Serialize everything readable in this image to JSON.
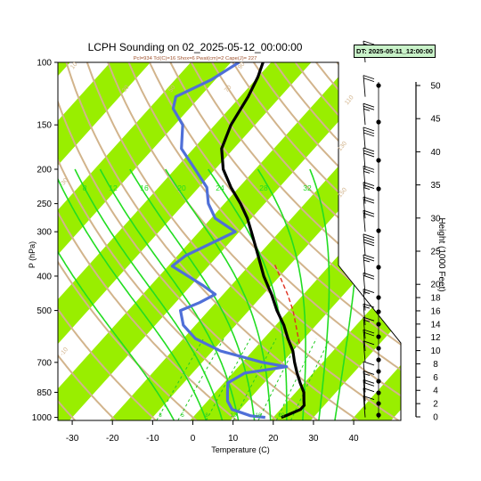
{
  "title": "LCPH Sounding on 02_2025-05-12_00:00:00",
  "subtitle": "Pcl=934 Tcl(C)=16 Shox=6 Pwat(cm)=2 Cape(J)= 227",
  "dt_badge": "DT: 2025-05-11_12:00:00",
  "colors": {
    "temperature": "#000000",
    "dewpoint": "#4f6fd8",
    "parcel": "#e03020",
    "dry_adiabat": "#d2b48c",
    "moist_adiabat": "#22dd22",
    "mixing_ratio": "#22cc22",
    "isotherm_band": "#99ee00"
  },
  "chart_data": {
    "type": "line",
    "xlabel": "Temperature (C)",
    "ylabel": "P (hPa)",
    "right_label": "Height (1000 Feet)",
    "xlim": [
      -33,
      50
    ],
    "ylim": [
      1020,
      100
    ],
    "y_scale": "log",
    "x_ticks": [
      -30,
      -20,
      -10,
      0,
      10,
      20,
      30,
      40
    ],
    "p_ticks": [
      100,
      150,
      200,
      250,
      300,
      400,
      500,
      700,
      850,
      1000
    ],
    "height_ticks": [
      0,
      2,
      4,
      6,
      8,
      10,
      12,
      14,
      16,
      18,
      20,
      25,
      30,
      35,
      40,
      45,
      50
    ],
    "dry_adiabat_labels": [
      "-30",
      "-10",
      "10",
      "30",
      "50",
      "70",
      "90",
      "110",
      "130",
      "150"
    ],
    "moist_adiabat_labels": [
      "8",
      "12",
      "16",
      "20",
      "24",
      "28",
      "32"
    ],
    "mixing_ratio_labels": [
      "3",
      "5",
      "8",
      "12",
      "16",
      "20"
    ],
    "series": [
      {
        "name": "temperature",
        "points": [
          {
            "p": 1000,
            "t": 22
          },
          {
            "p": 985,
            "t": 23
          },
          {
            "p": 950,
            "t": 25
          },
          {
            "p": 925,
            "t": 25
          },
          {
            "p": 900,
            "t": 24
          },
          {
            "p": 850,
            "t": 22
          },
          {
            "p": 800,
            "t": 19
          },
          {
            "p": 750,
            "t": 16
          },
          {
            "p": 700,
            "t": 13
          },
          {
            "p": 650,
            "t": 10
          },
          {
            "p": 600,
            "t": 6
          },
          {
            "p": 550,
            "t": 2
          },
          {
            "p": 500,
            "t": -3
          },
          {
            "p": 450,
            "t": -8
          },
          {
            "p": 400,
            "t": -14
          },
          {
            "p": 350,
            "t": -20
          },
          {
            "p": 300,
            "t": -27
          },
          {
            "p": 275,
            "t": -31
          },
          {
            "p": 250,
            "t": -36
          },
          {
            "p": 225,
            "t": -42
          },
          {
            "p": 200,
            "t": -48
          },
          {
            "p": 175,
            "t": -53
          },
          {
            "p": 150,
            "t": -56
          },
          {
            "p": 125,
            "t": -58
          },
          {
            "p": 110,
            "t": -60
          },
          {
            "p": 100,
            "t": -62
          }
        ]
      },
      {
        "name": "dewpoint",
        "points": [
          {
            "p": 1000,
            "t": 18
          },
          {
            "p": 990,
            "t": 14
          },
          {
            "p": 950,
            "t": 8
          },
          {
            "p": 900,
            "t": 5
          },
          {
            "p": 850,
            "t": 3
          },
          {
            "p": 800,
            "t": 1
          },
          {
            "p": 750,
            "t": 3
          },
          {
            "p": 720,
            "t": 12
          },
          {
            "p": 700,
            "t": 5
          },
          {
            "p": 650,
            "t": -8
          },
          {
            "p": 600,
            "t": -17
          },
          {
            "p": 550,
            "t": -23
          },
          {
            "p": 500,
            "t": -27
          },
          {
            "p": 475,
            "t": -24
          },
          {
            "p": 450,
            "t": -22
          },
          {
            "p": 425,
            "t": -27
          },
          {
            "p": 375,
            "t": -39
          },
          {
            "p": 350,
            "t": -38
          },
          {
            "p": 300,
            "t": -31
          },
          {
            "p": 275,
            "t": -39
          },
          {
            "p": 250,
            "t": -44
          },
          {
            "p": 225,
            "t": -48
          },
          {
            "p": 200,
            "t": -55
          },
          {
            "p": 175,
            "t": -63
          },
          {
            "p": 150,
            "t": -68
          },
          {
            "p": 135,
            "t": -74
          },
          {
            "p": 125,
            "t": -76
          },
          {
            "p": 112,
            "t": -71
          },
          {
            "p": 100,
            "t": -68
          }
        ]
      },
      {
        "name": "parcel",
        "points": [
          {
            "p": 620,
            "t": 10
          },
          {
            "p": 550,
            "t": 5
          },
          {
            "p": 500,
            "t": 1
          },
          {
            "p": 450,
            "t": -4
          },
          {
            "p": 400,
            "t": -10
          },
          {
            "p": 370,
            "t": -14
          }
        ]
      }
    ],
    "wind_barbs": [
      {
        "p": 100,
        "speed": 15,
        "dir": 270
      },
      {
        "p": 125,
        "speed": 20,
        "dir": 270
      },
      {
        "p": 150,
        "speed": 25,
        "dir": 270
      },
      {
        "p": 175,
        "speed": 30,
        "dir": 270
      },
      {
        "p": 200,
        "speed": 30,
        "dir": 270
      },
      {
        "p": 225,
        "speed": 25,
        "dir": 270
      },
      {
        "p": 250,
        "speed": 25,
        "dir": 270
      },
      {
        "p": 275,
        "speed": 20,
        "dir": 270
      },
      {
        "p": 300,
        "speed": 20,
        "dir": 270
      },
      {
        "p": 350,
        "speed": 40,
        "dir": 270
      },
      {
        "p": 400,
        "speed": 25,
        "dir": 270
      },
      {
        "p": 450,
        "speed": 20,
        "dir": 270
      },
      {
        "p": 500,
        "speed": 15,
        "dir": 270
      },
      {
        "p": 550,
        "speed": 15,
        "dir": 270
      },
      {
        "p": 600,
        "speed": 15,
        "dir": 270
      },
      {
        "p": 650,
        "speed": 20,
        "dir": 270
      },
      {
        "p": 700,
        "speed": 10,
        "dir": 270
      },
      {
        "p": 800,
        "speed": 10,
        "dir": 270
      },
      {
        "p": 850,
        "speed": 15,
        "dir": 200
      },
      {
        "p": 900,
        "speed": 20,
        "dir": 220
      },
      {
        "p": 950,
        "speed": 10,
        "dir": 240
      },
      {
        "p": 1000,
        "speed": 10,
        "dir": 200
      }
    ],
    "grid": true,
    "legend": "none"
  }
}
